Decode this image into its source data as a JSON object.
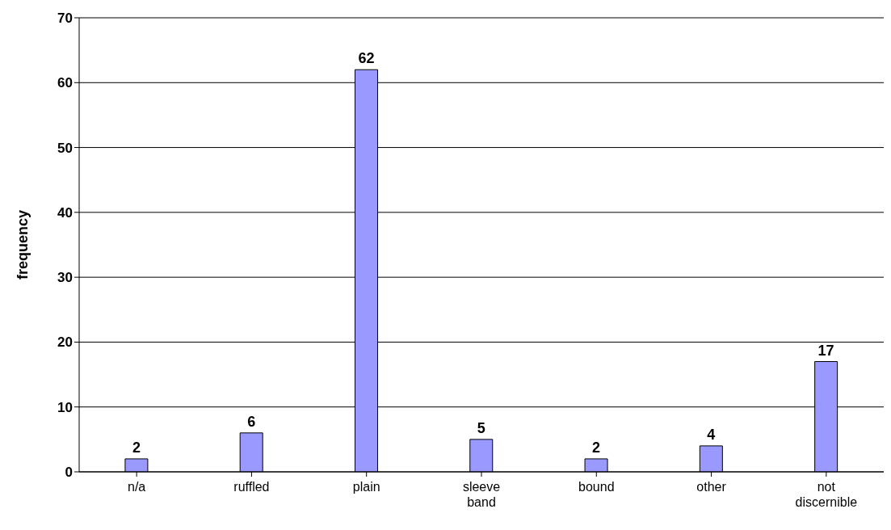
{
  "chart_data": {
    "type": "bar",
    "ylabel": "frequency",
    "categories": [
      "n/a",
      "ruffled",
      "plain",
      "sleeve band",
      "bound",
      "other",
      "not discernible"
    ],
    "values": [
      2,
      6,
      62,
      5,
      2,
      4,
      17
    ],
    "color": "#9999ff",
    "ylim": [
      0,
      70
    ],
    "yticks": [
      0,
      10,
      20,
      30,
      40,
      50,
      60,
      70
    ],
    "grid": "y",
    "data_labels": true
  }
}
